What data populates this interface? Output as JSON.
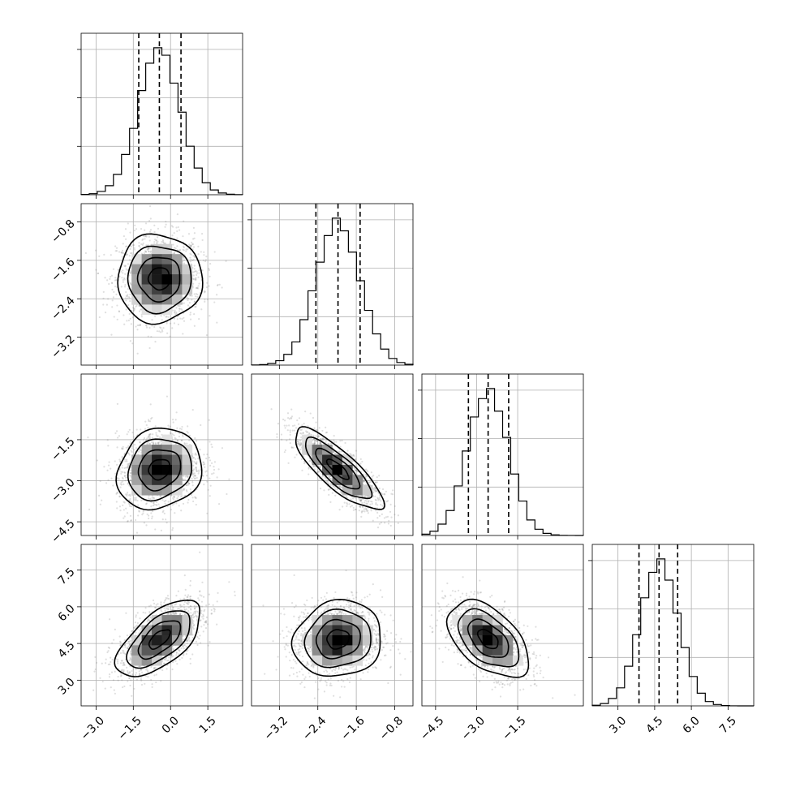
{
  "chart_data": {
    "type": "corner",
    "grid": true,
    "parameters": [
      {
        "range": [
          -3.6,
          2.9
        ],
        "ticks": [
          "-3.0",
          "-1.5",
          "0.0",
          "1.5"
        ],
        "tick_values": [
          -3.0,
          -1.5,
          0.0,
          1.5
        ],
        "quantiles": [
          -1.28,
          -0.45,
          0.42
        ],
        "mean": -0.45,
        "sd": 0.85
      },
      {
        "range": [
          -3.78,
          -0.42
        ],
        "ticks": [
          "-3.2",
          "-2.4",
          "-1.6",
          "-0.8"
        ],
        "tick_values": [
          -3.2,
          -2.4,
          -1.6,
          -0.8
        ],
        "quantiles": [
          -2.44,
          -1.98,
          -1.52
        ],
        "mean": -1.98,
        "sd": 0.46
      },
      {
        "range": [
          -5.0,
          0.9
        ],
        "ticks": [
          "-4.5",
          "-3.0",
          "-1.5"
        ],
        "tick_values": [
          -4.5,
          -3.0,
          -1.5
        ],
        "quantiles": [
          -3.3,
          -2.58,
          -1.83
        ],
        "mean": -2.58,
        "sd": 0.74
      },
      {
        "range": [
          1.95,
          8.55
        ],
        "ticks": [
          "3.0",
          "4.5",
          "6.0",
          "7.5"
        ],
        "tick_values": [
          3.0,
          4.5,
          6.0,
          7.5
        ],
        "quantiles": [
          3.86,
          4.68,
          5.44
        ],
        "mean": 4.68,
        "sd": 0.78
      }
    ],
    "correlations": [
      {
        "row": 1,
        "col": 0,
        "r": 0.0
      },
      {
        "row": 2,
        "col": 0,
        "r": 0.15
      },
      {
        "row": 2,
        "col": 1,
        "r": -0.82
      },
      {
        "row": 3,
        "col": 0,
        "r": 0.62
      },
      {
        "row": 3,
        "col": 1,
        "r": 0.1
      },
      {
        "row": 3,
        "col": 2,
        "r": -0.5
      }
    ],
    "histogram_bins": 20,
    "contour_levels_sigma": [
      0.5,
      1.0,
      1.5,
      2.0
    ]
  }
}
